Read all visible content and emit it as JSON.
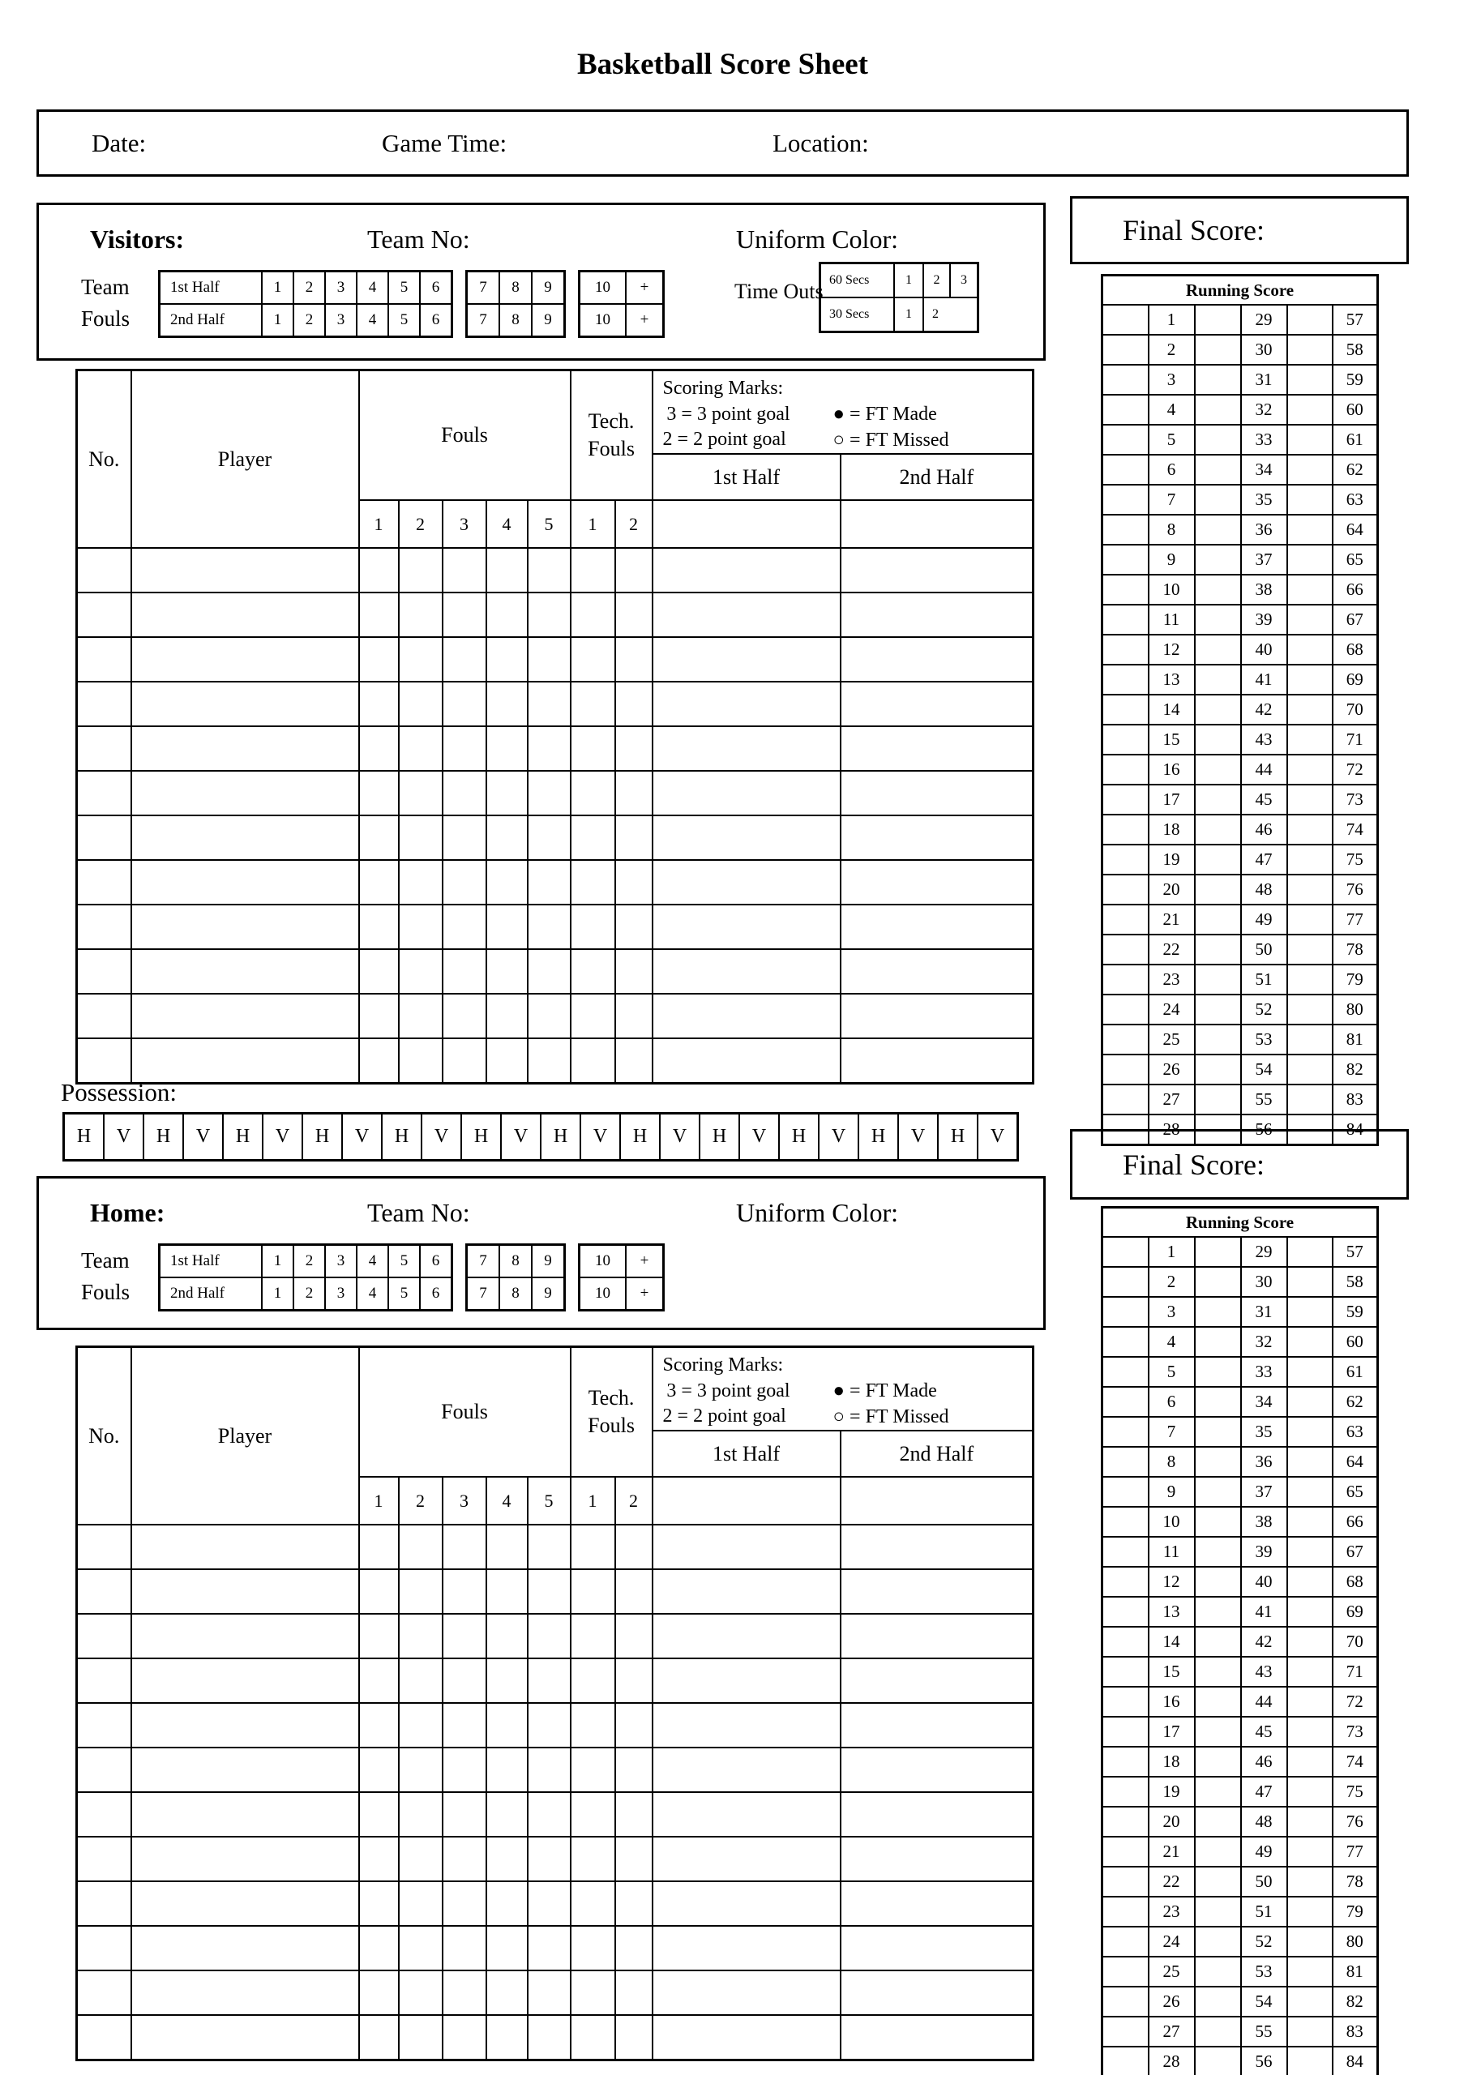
{
  "title": "Basketball Score Sheet",
  "info_bar": {
    "date_label": "Date:",
    "game_time_label": "Game Time:",
    "location_label": "Location:"
  },
  "teams": [
    {
      "name": "Visitors:",
      "team_no_label": "Team No:",
      "uniform_color_label": "Uniform Color:",
      "has_timeouts": true
    },
    {
      "name": "Home:",
      "team_no_label": "Team No:",
      "uniform_color_label": "Uniform Color:",
      "has_timeouts": false
    }
  ],
  "team_fouls": {
    "label_lines": [
      "Team",
      "Fouls"
    ],
    "row_labels": [
      "1st Half",
      "2nd Half"
    ],
    "groups": [
      [
        "1",
        "2",
        "3",
        "4",
        "5",
        "6"
      ],
      [
        "7",
        "8",
        "9"
      ],
      [
        "10",
        "+"
      ]
    ]
  },
  "timeouts": {
    "label": "Time Outs",
    "rows": [
      {
        "label": "60 Secs",
        "cells": [
          "1",
          "2",
          "3"
        ]
      },
      {
        "label": "30 Secs",
        "cells": [
          "1",
          "2"
        ]
      }
    ]
  },
  "player_table": {
    "no_label": "No.",
    "player_label": "Player",
    "fouls_label": "Fouls",
    "tech_fouls_lines": [
      "Tech.",
      "Fouls"
    ],
    "foul_numbers": [
      "1",
      "2",
      "3",
      "4",
      "5"
    ],
    "tech_numbers": [
      "1",
      "2"
    ],
    "half_labels": [
      "1st Half",
      "2nd Half"
    ],
    "scoring_marks": {
      "title": "Scoring Marks:",
      "rules": [
        "3 = 3 point goal",
        "2 = 2 point goal"
      ],
      "ft_legend": [
        "● = FT Made",
        "○ = FT Missed"
      ]
    },
    "body_row_count": 12
  },
  "possession": {
    "label": "Possession:",
    "cells": [
      "H",
      "V",
      "H",
      "V",
      "H",
      "V",
      "H",
      "V",
      "H",
      "V",
      "H",
      "V",
      "H",
      "V",
      "H",
      "V",
      "H",
      "V",
      "H",
      "V",
      "H",
      "V",
      "H",
      "V"
    ]
  },
  "final_score_label": "Final Score:",
  "running_score": {
    "header": "Running Score",
    "rows": [
      [
        "1",
        "29",
        "57"
      ],
      [
        "2",
        "30",
        "58"
      ],
      [
        "3",
        "31",
        "59"
      ],
      [
        "4",
        "32",
        "60"
      ],
      [
        "5",
        "33",
        "61"
      ],
      [
        "6",
        "34",
        "62"
      ],
      [
        "7",
        "35",
        "63"
      ],
      [
        "8",
        "36",
        "64"
      ],
      [
        "9",
        "37",
        "65"
      ],
      [
        "10",
        "38",
        "66"
      ],
      [
        "11",
        "39",
        "67"
      ],
      [
        "12",
        "40",
        "68"
      ],
      [
        "13",
        "41",
        "69"
      ],
      [
        "14",
        "42",
        "70"
      ],
      [
        "15",
        "43",
        "71"
      ],
      [
        "16",
        "44",
        "72"
      ],
      [
        "17",
        "45",
        "73"
      ],
      [
        "18",
        "46",
        "74"
      ],
      [
        "19",
        "47",
        "75"
      ],
      [
        "20",
        "48",
        "76"
      ],
      [
        "21",
        "49",
        "77"
      ],
      [
        "22",
        "50",
        "78"
      ],
      [
        "23",
        "51",
        "79"
      ],
      [
        "24",
        "52",
        "80"
      ],
      [
        "25",
        "53",
        "81"
      ],
      [
        "26",
        "54",
        "82"
      ],
      [
        "27",
        "55",
        "83"
      ],
      [
        "28",
        "56",
        "84"
      ]
    ]
  }
}
